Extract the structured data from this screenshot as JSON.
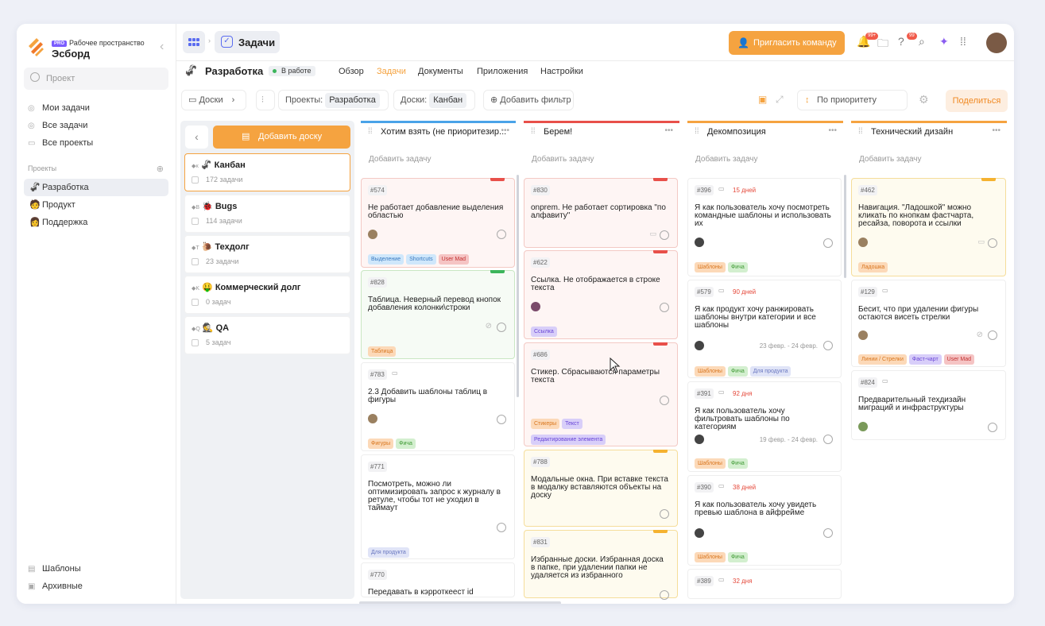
{
  "workspace": {
    "badge": "PRO",
    "label": "Рабочее пространство",
    "name": "Эсборд"
  },
  "sidebar": {
    "search_placeholder": "Проект",
    "nav": [
      {
        "label": "Мои задачи"
      },
      {
        "label": "Все задачи"
      },
      {
        "label": "Все проекты"
      }
    ],
    "projects_title": "Проекты",
    "projects": [
      {
        "label": "Разработка",
        "active": true
      },
      {
        "label": "Продукт"
      },
      {
        "label": "Поддержка"
      }
    ],
    "bottom": [
      {
        "label": "Шаблоны"
      },
      {
        "label": "Архивные"
      }
    ]
  },
  "topbar": {
    "crumb": "Задачи",
    "invite": "Пригласить команду",
    "notifications_badge": "99+",
    "help_badge": "99"
  },
  "project": {
    "title": "Разработка",
    "status": "В работе",
    "tabs": [
      {
        "label": "Обзор"
      },
      {
        "label": "Задачи",
        "active": true
      },
      {
        "label": "Документы"
      },
      {
        "label": "Приложения"
      },
      {
        "label": "Настройки"
      }
    ]
  },
  "filters": {
    "boards_label": "Доски",
    "projects_label": "Проекты:",
    "projects_chip": "Разработка",
    "boards_filter_label": "Доски:",
    "boards_chip": "Канбан",
    "add_filter": "Добавить фильтр",
    "sort": "По приоритету",
    "share": "Поделиться"
  },
  "boards_panel": {
    "add_board": "Добавить доску",
    "boards": [
      {
        "name": "Канбан",
        "count": "172 задачи",
        "active": true
      },
      {
        "name": "Bugs",
        "count": "114 задачи"
      },
      {
        "name": "Техдолг",
        "count": "23 задачи"
      },
      {
        "name": "Коммерческий долг",
        "count": "0 задач"
      },
      {
        "name": "QA",
        "count": "5 задач"
      }
    ]
  },
  "columns": [
    {
      "title": "Хотим взять (не приоритезир...",
      "color": "#4aa3e8",
      "add": "Добавить задачу",
      "cards": [
        {
          "num": "#574",
          "title": "Не работает добавление выделения областью",
          "tags": [
            {
              "label": "Выделение",
              "color": "blue"
            },
            {
              "label": "Shortcuts",
              "color": "blue"
            },
            {
              "label": "User Mad",
              "color": "red"
            }
          ]
        },
        {
          "num": "#828",
          "title": "Таблица. Неверный перевод кнопок добавления колонки\\строки",
          "tags": [
            {
              "label": "Таблица",
              "color": "orange"
            }
          ]
        },
        {
          "num": "#783",
          "title": "2.3 Добавить шаблоны таблиц в фигуры",
          "tags": [
            {
              "label": "Фигуры",
              "color": "orange"
            },
            {
              "label": "Фича",
              "color": "green"
            }
          ]
        },
        {
          "num": "#771",
          "title": "Посмотреть, можно ли оптимизировать запрос к журналу в ретуле, чтобы тот не уходил в таймаут",
          "tags": [
            {
              "label": "Для продукта",
              "color": "lav"
            }
          ]
        },
        {
          "num": "#770",
          "title": "Передавать в кэрроткеест id"
        }
      ]
    },
    {
      "title": "Берем!",
      "color": "#e8504a",
      "add": "Добавить задачу",
      "cards": [
        {
          "num": "#830",
          "title": "onprem. Не работает сортировка \"по алфавиту\""
        },
        {
          "num": "#622",
          "title": "Ссылка. Не отображается в строке текста",
          "tags": [
            {
              "label": "Ссылка",
              "color": "purple"
            }
          ]
        },
        {
          "num": "#686",
          "title": "Стикер. Сбрасываются параметры текста",
          "tags": [
            {
              "label": "Стикеры",
              "color": "orange"
            },
            {
              "label": "Текст",
              "color": "purple"
            },
            {
              "label": "Редактирование элемента",
              "color": "purple"
            }
          ]
        },
        {
          "num": "#788",
          "title": "Модальные окна. При вставке текста в модалку вставляются объекты на доску"
        },
        {
          "num": "#831",
          "title": "Избранные доски. Избранная доска в папке, при удалении папки не удаляется из избранного"
        }
      ]
    },
    {
      "title": "Декомпозиция",
      "color": "#f5a340",
      "add": "Добавить задачу",
      "cards": [
        {
          "num": "#396",
          "days": "15 дней",
          "title": "Я как пользователь хочу посмотреть командные шаблоны и использовать их",
          "tags": [
            {
              "label": "Шаблоны",
              "color": "orange"
            },
            {
              "label": "Фича",
              "color": "green"
            }
          ]
        },
        {
          "num": "#579",
          "days": "90 дней",
          "title": "Я как продукт хочу ранжировать шаблоны внутри категории и все шаблоны",
          "date": "23 февр. - 24 февр.",
          "tags": [
            {
              "label": "Шаблоны",
              "color": "orange"
            },
            {
              "label": "Фича",
              "color": "green"
            },
            {
              "label": "Для продукта",
              "color": "lav"
            }
          ]
        },
        {
          "num": "#391",
          "days": "92 дня",
          "title": "Я как пользователь хочу фильтровать шаблоны по категориям",
          "date": "19 февр. - 24 февр.",
          "tags": [
            {
              "label": "Шаблоны",
              "color": "orange"
            },
            {
              "label": "Фича",
              "color": "green"
            }
          ]
        },
        {
          "num": "#390",
          "days": "38 дней",
          "title": "Я как пользователь хочу увидеть превью шаблона в айфрейме",
          "tags": [
            {
              "label": "Шаблоны",
              "color": "orange"
            },
            {
              "label": "Фича",
              "color": "green"
            }
          ]
        },
        {
          "num": "#389",
          "days": "32 дня",
          "title": ""
        }
      ]
    },
    {
      "title": "Технический дизайн",
      "color": "#f5a340",
      "add": "Добавить задачу",
      "cards": [
        {
          "num": "#462",
          "title": "Навигация. \"Ладошкой\" можно кликать по кнопкам фастчарта, ресайза, поворота и ссылки",
          "tags": [
            {
              "label": "Ладошка",
              "color": "orange"
            }
          ]
        },
        {
          "num": "#129",
          "title": "Бесит, что при удалении фигуры остаются висеть стрелки",
          "tags": [
            {
              "label": "Линии / Стрелки",
              "color": "orange"
            },
            {
              "label": "Фаст-чарт",
              "color": "purple"
            },
            {
              "label": "User Mad",
              "color": "red"
            }
          ]
        },
        {
          "num": "#824",
          "title": "Предварительный техдизайн миграций и инфраструктуры"
        }
      ]
    }
  ]
}
